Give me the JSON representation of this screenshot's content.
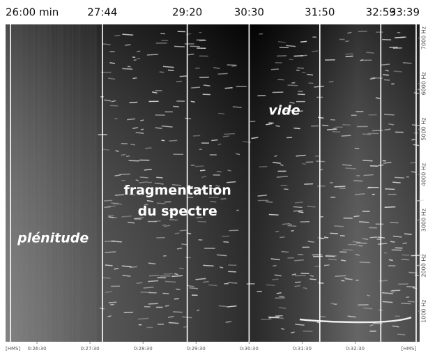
{
  "chart_data": {
    "type": "spectrogram",
    "markers": [
      {
        "value": 1560,
        "label": "26:00 min"
      },
      {
        "value": 1664,
        "label": "27:44"
      },
      {
        "value": 1760,
        "label": "29:20"
      },
      {
        "value": 1830,
        "label": "30:30"
      },
      {
        "value": 1910,
        "label": "31:50"
      },
      {
        "value": 1979,
        "label": "32:59"
      },
      {
        "value": 2019,
        "label": "33:39"
      }
    ],
    "xlim": [
      1560,
      2019
    ],
    "x_unit_label": "[HMS]",
    "xticks": [
      {
        "value": 1590,
        "label": "0:26:30"
      },
      {
        "value": 1650,
        "label": "0:27:30"
      },
      {
        "value": 1710,
        "label": "0:28:30"
      },
      {
        "value": 1770,
        "label": "0:29:30"
      },
      {
        "value": 1830,
        "label": "0:30:30"
      },
      {
        "value": 1890,
        "label": "0:31:30"
      },
      {
        "value": 1950,
        "label": "0:32:30"
      }
    ],
    "ylim": [
      330,
      7300
    ],
    "yticks": [
      {
        "value": 1000,
        "label": "1000 Hz"
      },
      {
        "value": 2000,
        "label": "2000 Hz"
      },
      {
        "value": 3000,
        "label": "3000 Hz"
      },
      {
        "value": 4000,
        "label": "4000 Hz"
      },
      {
        "value": 5000,
        "label": "5000 Hz"
      },
      {
        "value": 6000,
        "label": "6000 Hz"
      },
      {
        "value": 7000,
        "label": "7000 Hz"
      }
    ],
    "annotations": [
      {
        "text": "plénitude",
        "x": 1568,
        "y": 2600
      },
      {
        "text": [
          "fragmentation",
          "du spectre"
        ],
        "x": 1749,
        "y": 3650
      },
      {
        "text": "vide",
        "x": 1852,
        "y": 5400
      }
    ]
  }
}
